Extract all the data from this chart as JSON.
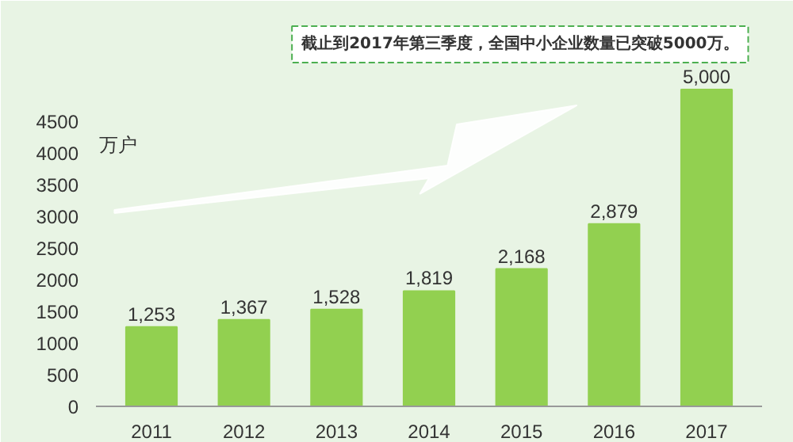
{
  "chart_data": {
    "type": "bar",
    "ylabel": "万户",
    "annotations": [
      "截止到2017年第三季度，全国中小企业数量已突破5000万。"
    ],
    "categories": [
      "2011",
      "2012",
      "2013",
      "2014",
      "2015",
      "2016",
      "2017"
    ],
    "values": [
      1253,
      1367,
      1528,
      1819,
      2168,
      2879,
      5000
    ],
    "value_labels": [
      "1,253",
      "1,367",
      "1,528",
      "1,819",
      "2,168",
      "2,879",
      "5,000"
    ],
    "color": "#92d050",
    "ylim": [
      0,
      6200
    ],
    "yticks": [
      0,
      500,
      1000,
      1500,
      2000,
      2500,
      3000,
      3500,
      4000,
      4500
    ],
    "grid": false
  }
}
